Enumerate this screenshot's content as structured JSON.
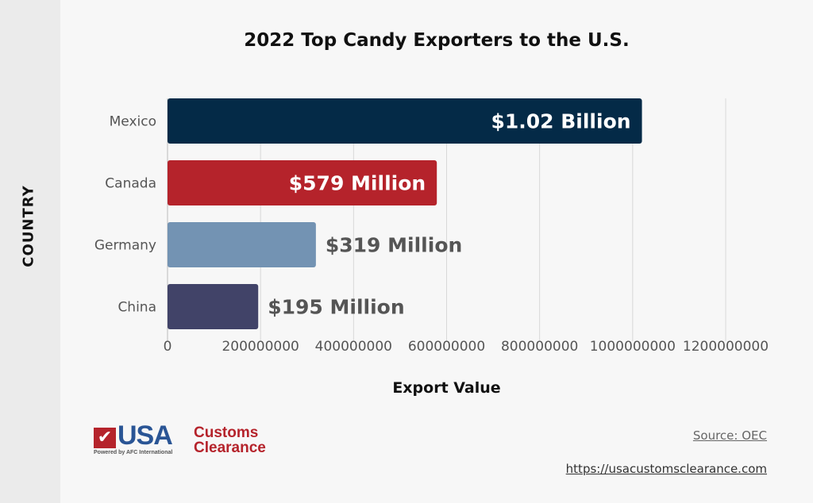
{
  "chart_data": {
    "type": "bar",
    "orientation": "horizontal",
    "title": "2022 Top Candy Exporters to the U.S.",
    "xlabel": "Export Value",
    "ylabel": "COUNTRY",
    "categories": [
      "Mexico",
      "Canada",
      "Germany",
      "China"
    ],
    "values": [
      1020000000,
      579000000,
      319000000,
      195000000
    ],
    "data_labels": [
      "$1.02 Billion",
      "$579 Million",
      "$319 Million",
      "$195 Million"
    ],
    "colors": [
      "#042a47",
      "#b5232b",
      "#7393b3",
      "#414368"
    ],
    "xlim": [
      0,
      1200000000
    ],
    "xticks": [
      "0",
      "200000000",
      "400000000",
      "600000000",
      "800000000",
      "1000000000",
      "1200000000"
    ],
    "grid": true,
    "legend": "none"
  },
  "footer": {
    "source": "Source: OEC",
    "url": "https://usacustomsclearance.com",
    "logo": {
      "brand": "USA",
      "name_line1": "Customs",
      "name_line2": "Clearance",
      "tagline": "Powered by AFC International"
    }
  }
}
